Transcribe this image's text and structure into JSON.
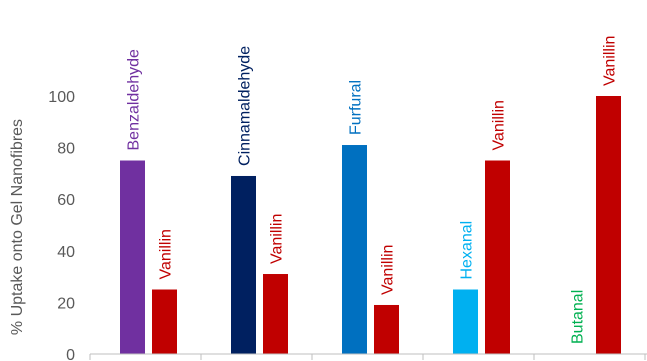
{
  "chart_data": {
    "type": "bar",
    "ylabel": "% Uptake onto Gel Nanofibres",
    "ylim": [
      0,
      100
    ],
    "y_ticks": [
      "0",
      "20",
      "40",
      "60",
      "80",
      "100"
    ],
    "grid": false,
    "legend": "none",
    "groups": [
      {
        "bars": [
          {
            "label": "Benzaldehyde",
            "value": 75,
            "color": "#7030A0"
          },
          {
            "label": "Vanillin",
            "value": 25,
            "color": "#C00000"
          }
        ]
      },
      {
        "bars": [
          {
            "label": "Cinnamaldehyde",
            "value": 69,
            "color": "#002060"
          },
          {
            "label": "Vanillin",
            "value": 31,
            "color": "#C00000"
          }
        ]
      },
      {
        "bars": [
          {
            "label": "Furfural",
            "value": 81,
            "color": "#0070C0"
          },
          {
            "label": "Vanillin",
            "value": 19,
            "color": "#C00000"
          }
        ]
      },
      {
        "bars": [
          {
            "label": "Hexanal",
            "value": 25,
            "color": "#00B0F0"
          },
          {
            "label": "Vanillin",
            "value": 75,
            "color": "#C00000"
          }
        ]
      },
      {
        "bars": [
          {
            "label": "Butanal",
            "value": 0,
            "color": "#00B050"
          },
          {
            "label": "Vanillin",
            "value": 100,
            "color": "#C00000"
          }
        ]
      }
    ]
  }
}
